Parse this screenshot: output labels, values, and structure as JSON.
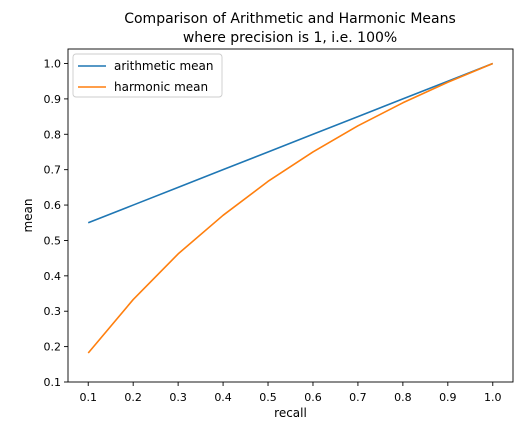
{
  "chart_data": {
    "type": "line",
    "title": "Comparison of Arithmetic and Harmonic Means\nwhere precision is 1, i.e. 100%",
    "xlabel": "recall",
    "ylabel": "mean",
    "x": [
      0.1,
      0.2,
      0.3,
      0.4,
      0.5,
      0.6,
      0.7,
      0.8,
      0.9,
      1.0
    ],
    "x_ticks": [
      "0.1",
      "0.2",
      "0.3",
      "0.4",
      "0.5",
      "0.6",
      "0.7",
      "0.8",
      "0.9",
      "1.0"
    ],
    "y_ticks": [
      "0.1",
      "0.2",
      "0.3",
      "0.4",
      "0.5",
      "0.6",
      "0.7",
      "0.8",
      "0.9",
      "1.0"
    ],
    "xlim": [
      0.055,
      1.045
    ],
    "ylim": [
      0.1,
      1.041
    ],
    "grid": false,
    "legend_position": "top-left",
    "series": [
      {
        "name": "arithmetic mean",
        "color": "#1f77b4",
        "values": [
          0.55,
          0.6,
          0.65,
          0.7,
          0.75,
          0.8,
          0.85,
          0.9,
          0.95,
          1.0
        ]
      },
      {
        "name": "harmonic mean",
        "color": "#ff7f0e",
        "values": [
          0.182,
          0.333,
          0.462,
          0.571,
          0.667,
          0.75,
          0.824,
          0.889,
          0.947,
          1.0
        ]
      }
    ]
  }
}
